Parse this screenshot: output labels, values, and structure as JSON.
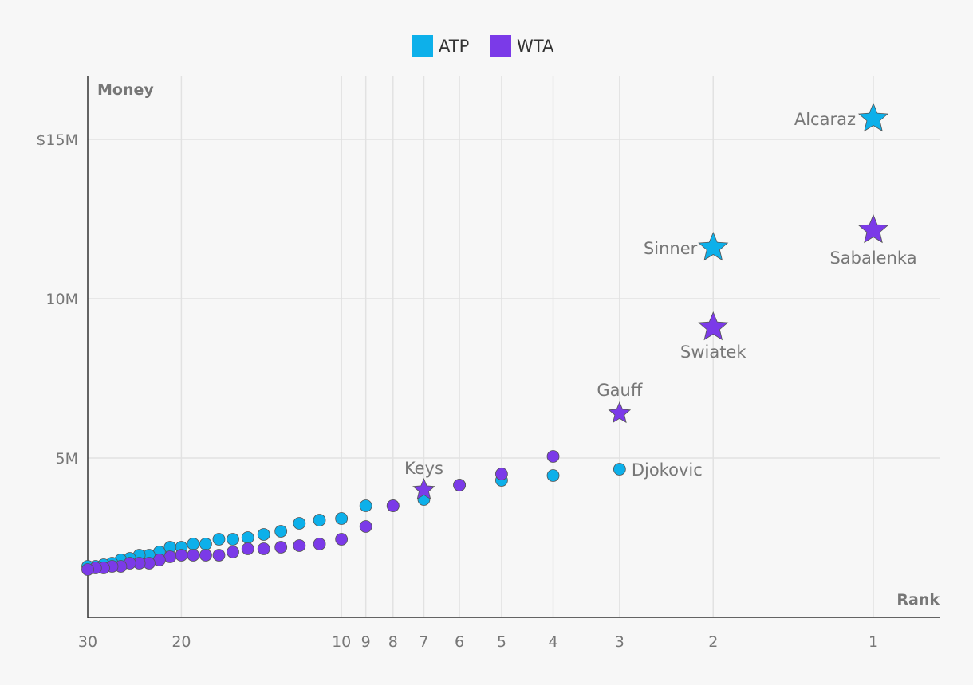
{
  "chart_data": {
    "type": "scatter",
    "xlabel": "Rank",
    "ylabel": "Money",
    "x_scale": "log",
    "x_reversed": true,
    "xlim": [
      30,
      0.85
    ],
    "ylim": [
      0,
      17000000
    ],
    "x_ticks": [
      {
        "value": 30,
        "label": "30"
      },
      {
        "value": 20,
        "label": "20"
      },
      {
        "value": 10,
        "label": "10"
      },
      {
        "value": 9,
        "label": "9"
      },
      {
        "value": 8,
        "label": "8"
      },
      {
        "value": 7,
        "label": "7"
      },
      {
        "value": 6,
        "label": "6"
      },
      {
        "value": 5,
        "label": "5"
      },
      {
        "value": 4,
        "label": "4"
      },
      {
        "value": 3,
        "label": "3"
      },
      {
        "value": 2,
        "label": "2"
      },
      {
        "value": 1,
        "label": "1"
      }
    ],
    "y_ticks": [
      {
        "value": 5000000,
        "label": "5M"
      },
      {
        "value": 10000000,
        "label": "10M"
      },
      {
        "value": 15000000,
        "label": "$15M"
      }
    ],
    "legend": {
      "position": "top-center"
    },
    "series": [
      {
        "name": "ATP",
        "color": "#0db0ea",
        "points": [
          {
            "rank": 1,
            "money": 15650000,
            "label": "Alcaraz",
            "marker": "star"
          },
          {
            "rank": 2,
            "money": 11600000,
            "label": "Sinner",
            "marker": "star"
          },
          {
            "rank": 3,
            "money": 4650000,
            "label": "Djokovic"
          },
          {
            "rank": 4,
            "money": 4450000
          },
          {
            "rank": 5,
            "money": 4300000
          },
          {
            "rank": 6,
            "money": 4150000
          },
          {
            "rank": 7,
            "money": 3700000
          },
          {
            "rank": 8,
            "money": 3500000
          },
          {
            "rank": 9,
            "money": 3500000
          },
          {
            "rank": 10,
            "money": 3100000
          },
          {
            "rank": 11,
            "money": 3050000
          },
          {
            "rank": 12,
            "money": 2950000
          },
          {
            "rank": 13,
            "money": 2700000
          },
          {
            "rank": 14,
            "money": 2600000
          },
          {
            "rank": 15,
            "money": 2500000
          },
          {
            "rank": 16,
            "money": 2450000
          },
          {
            "rank": 17,
            "money": 2450000
          },
          {
            "rank": 18,
            "money": 2300000
          },
          {
            "rank": 19,
            "money": 2300000
          },
          {
            "rank": 20,
            "money": 2200000
          },
          {
            "rank": 21,
            "money": 2200000
          },
          {
            "rank": 22,
            "money": 2050000
          },
          {
            "rank": 23,
            "money": 1950000
          },
          {
            "rank": 24,
            "money": 1950000
          },
          {
            "rank": 25,
            "money": 1850000
          },
          {
            "rank": 26,
            "money": 1800000
          },
          {
            "rank": 27,
            "money": 1700000
          },
          {
            "rank": 28,
            "money": 1650000
          },
          {
            "rank": 29,
            "money": 1600000
          },
          {
            "rank": 30,
            "money": 1600000
          }
        ]
      },
      {
        "name": "WTA",
        "color": "#7b3ae8",
        "points": [
          {
            "rank": 1,
            "money": 12150000,
            "label": "Sabalenka",
            "marker": "star"
          },
          {
            "rank": 2,
            "money": 9100000,
            "label": "Swiatek",
            "marker": "star"
          },
          {
            "rank": 3,
            "money": 6400000,
            "label": "Gauff",
            "marker": "star"
          },
          {
            "rank": 4,
            "money": 5050000
          },
          {
            "rank": 5,
            "money": 4500000
          },
          {
            "rank": 6,
            "money": 4150000
          },
          {
            "rank": 7,
            "money": 4000000,
            "label": "Keys",
            "marker": "star"
          },
          {
            "rank": 8,
            "money": 3500000
          },
          {
            "rank": 9,
            "money": 2850000
          },
          {
            "rank": 10,
            "money": 2450000
          },
          {
            "rank": 11,
            "money": 2300000
          },
          {
            "rank": 12,
            "money": 2250000
          },
          {
            "rank": 13,
            "money": 2200000
          },
          {
            "rank": 14,
            "money": 2150000
          },
          {
            "rank": 15,
            "money": 2150000
          },
          {
            "rank": 16,
            "money": 2050000
          },
          {
            "rank": 17,
            "money": 1950000
          },
          {
            "rank": 18,
            "money": 1950000
          },
          {
            "rank": 19,
            "money": 1950000
          },
          {
            "rank": 20,
            "money": 1950000
          },
          {
            "rank": 21,
            "money": 1900000
          },
          {
            "rank": 22,
            "money": 1800000
          },
          {
            "rank": 23,
            "money": 1700000
          },
          {
            "rank": 24,
            "money": 1700000
          },
          {
            "rank": 25,
            "money": 1700000
          },
          {
            "rank": 26,
            "money": 1600000
          },
          {
            "rank": 27,
            "money": 1600000
          },
          {
            "rank": 28,
            "money": 1550000
          },
          {
            "rank": 29,
            "money": 1550000
          },
          {
            "rank": 30,
            "money": 1500000
          }
        ]
      }
    ]
  }
}
